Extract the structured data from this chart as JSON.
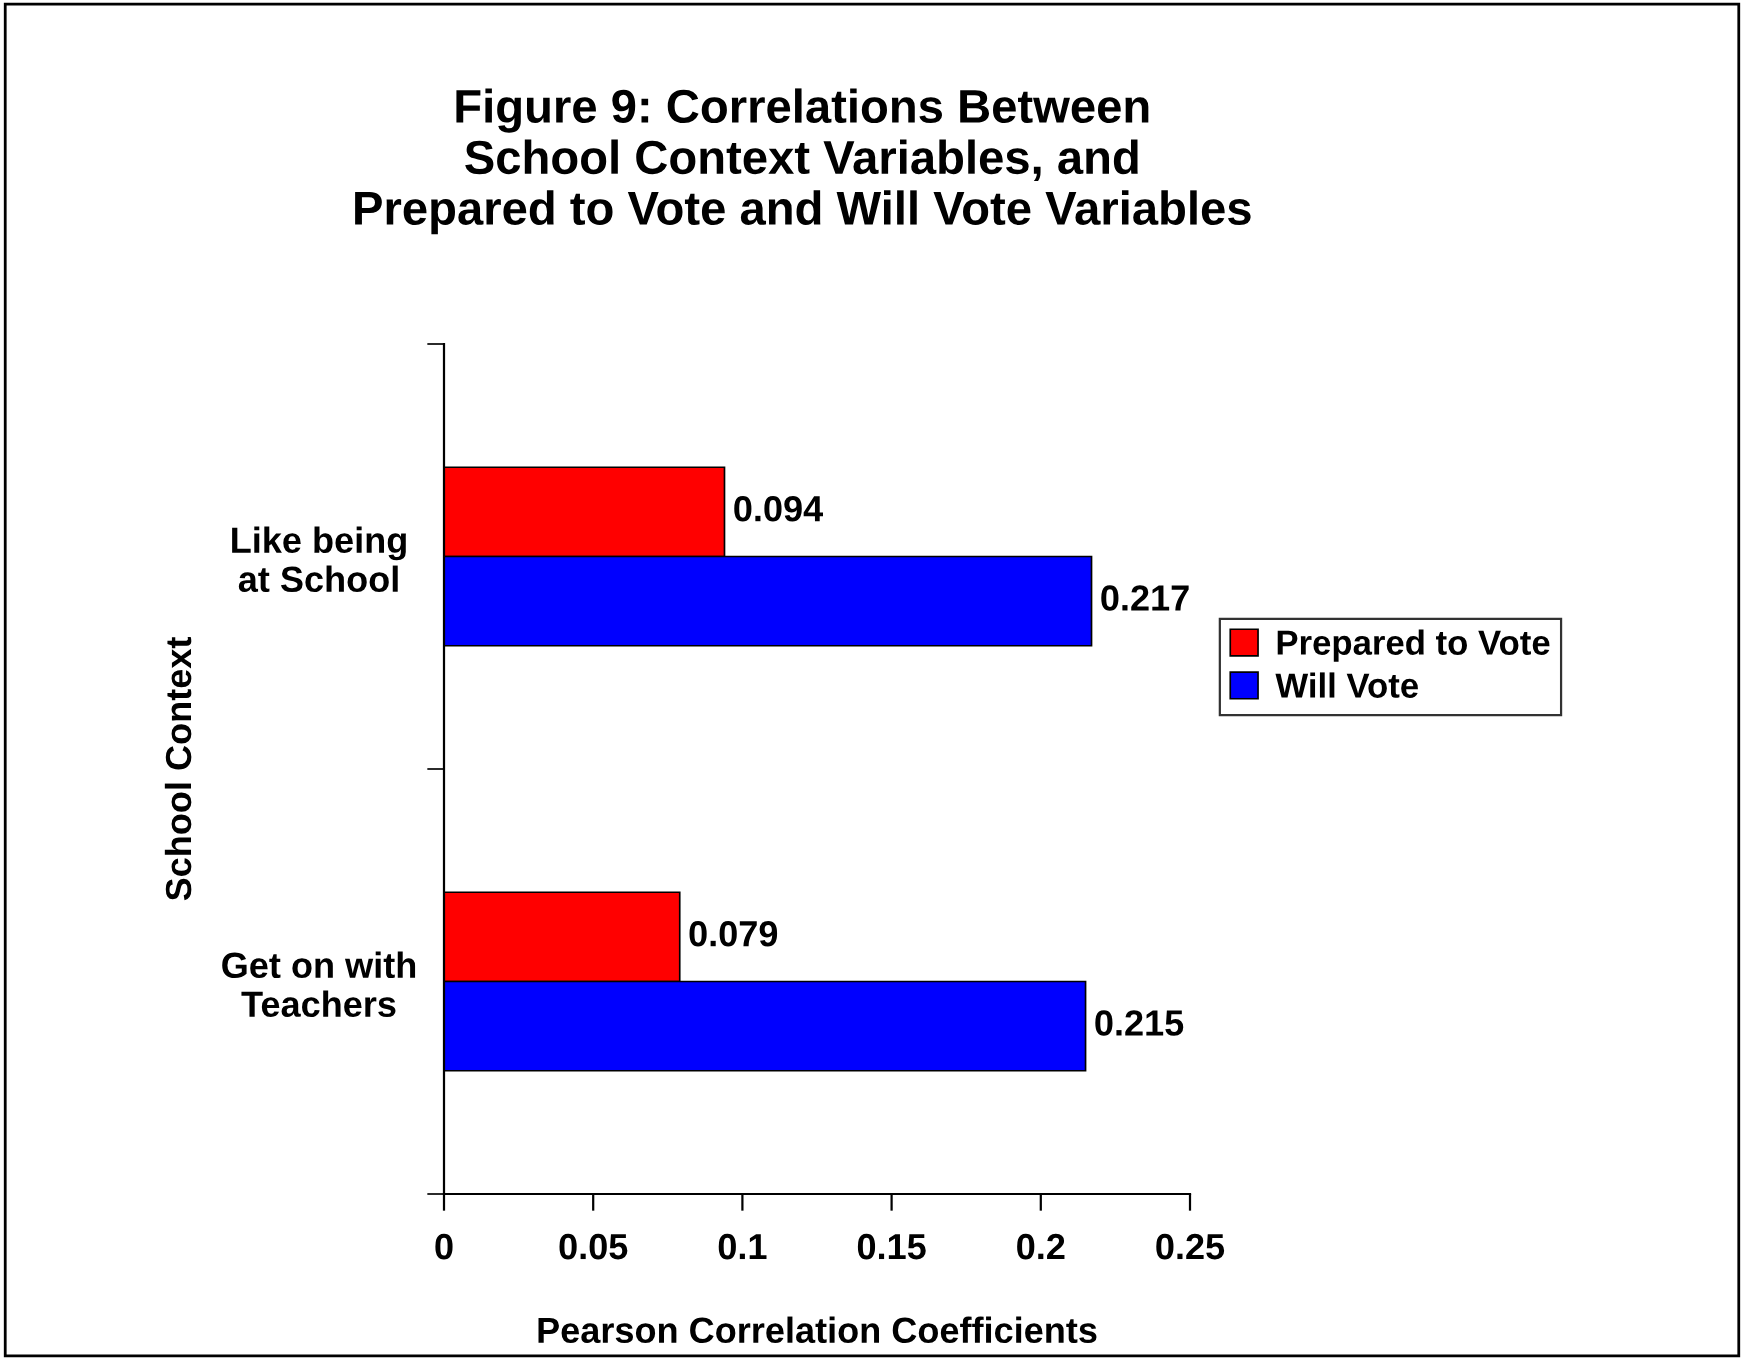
{
  "chart_data": {
    "type": "bar",
    "orientation": "horizontal",
    "title": "Figure 9: Correlations Between\nSchool Context Variables, and\nPrepared to Vote and Will Vote Variables",
    "xlabel": "Pearson Correlation Coefficients",
    "ylabel": "School Context",
    "categories": [
      "Like being\nat School",
      "Get on with\nTeachers"
    ],
    "series": [
      {
        "name": "Prepared to Vote",
        "color": "#ff0000",
        "values": [
          0.094,
          0.079
        ]
      },
      {
        "name": "Will Vote",
        "color": "#0000ff",
        "values": [
          0.217,
          0.215
        ]
      }
    ],
    "xlim": [
      0,
      0.25
    ],
    "xticks": [
      0,
      0.05,
      0.1,
      0.15,
      0.2,
      0.25
    ],
    "data_labels": true,
    "legend": "right",
    "grid": false
  }
}
